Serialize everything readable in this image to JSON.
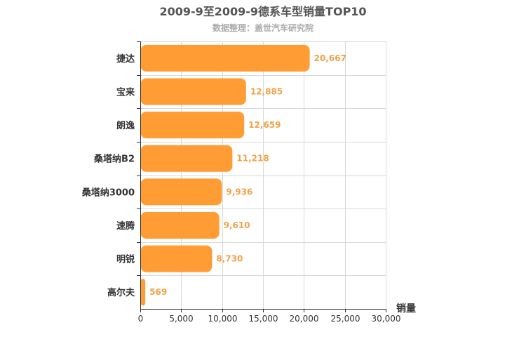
{
  "chart_data": {
    "type": "bar",
    "orientation": "horizontal",
    "title": "2009-9至2009-9德系车型销量TOP10",
    "subtitle": "数据整理：盖世汽车研究院",
    "xlabel": "销量",
    "ylabel": "",
    "categories": [
      "捷达",
      "宝来",
      "朗逸",
      "桑塔纳B2",
      "桑塔纳3000",
      "速腾",
      "明锐",
      "高尔夫"
    ],
    "values": [
      20667,
      12885,
      12659,
      11218,
      9936,
      9610,
      8730,
      569
    ],
    "value_labels": [
      "20,667",
      "12,885",
      "12,659",
      "11,218",
      "9,936",
      "9,610",
      "8,730",
      "569"
    ],
    "xlim": [
      0,
      30000
    ],
    "ticks": [
      0,
      5000,
      10000,
      15000,
      20000,
      25000,
      30000
    ],
    "tick_labels": [
      "0",
      "5,000",
      "10,000",
      "15,000",
      "20,000",
      "25,000",
      "30,000"
    ],
    "grid": true,
    "bar_color": "#ff9c33",
    "label_color": "#f0a24a"
  }
}
